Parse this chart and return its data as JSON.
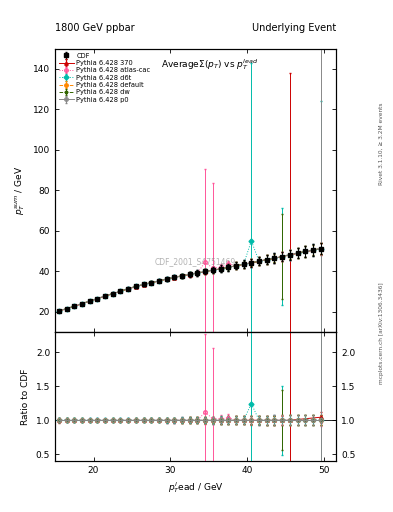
{
  "title_left": "1800 GeV ppbar",
  "title_right": "Underlying Event",
  "plot_title": "AverageΣ(p_T) vs p_T^{lead}",
  "ylabel_main": "p_T^{sum} / GeV",
  "ylabel_ratio": "Ratio to CDF",
  "xlabel": "p_T^{l}ead / GeV",
  "watermark": "CDF_2001_S4751469",
  "right_label_top": "Rivet 3.1.10, ≥ 3.2M events",
  "right_label_bottom": "mcplots.cern.ch [arXiv:1306.3436]",
  "xlim": [
    15.0,
    51.5
  ],
  "ylim_main": [
    10,
    150
  ],
  "ylim_ratio": [
    0.4,
    2.3
  ],
  "yticks_main": [
    20,
    40,
    60,
    80,
    100,
    120,
    140
  ],
  "yticks_ratio": [
    0.5,
    1.0,
    1.5,
    2.0
  ],
  "xticks": [
    20,
    30,
    40,
    50
  ],
  "cdf_x": [
    15.5,
    16.5,
    17.5,
    18.5,
    19.5,
    20.5,
    21.5,
    22.5,
    23.5,
    24.5,
    25.5,
    26.5,
    27.5,
    28.5,
    29.5,
    30.5,
    31.5,
    32.5,
    33.5,
    34.5,
    35.5,
    36.5,
    37.5,
    38.5,
    39.5,
    40.5,
    41.5,
    42.5,
    43.5,
    44.5,
    45.5,
    46.5,
    47.5,
    48.5,
    49.5
  ],
  "cdf_y": [
    20.5,
    21.5,
    22.8,
    24.0,
    25.3,
    26.5,
    27.8,
    29.0,
    30.2,
    31.4,
    32.5,
    33.5,
    34.4,
    35.3,
    36.2,
    37.0,
    37.8,
    38.5,
    39.2,
    39.9,
    40.6,
    41.3,
    42.0,
    42.8,
    43.5,
    44.2,
    45.0,
    45.8,
    46.5,
    47.3,
    48.2,
    49.0,
    49.8,
    50.5,
    51.2
  ],
  "cdf_yerr": [
    0.5,
    0.5,
    0.5,
    0.5,
    0.5,
    0.5,
    0.5,
    0.6,
    0.6,
    0.6,
    0.7,
    0.7,
    0.8,
    0.8,
    0.9,
    1.0,
    1.1,
    1.2,
    1.3,
    1.4,
    1.5,
    1.6,
    1.7,
    1.8,
    1.9,
    2.0,
    2.1,
    2.2,
    2.3,
    2.4,
    2.5,
    2.6,
    2.7,
    2.8,
    2.9
  ],
  "series": [
    {
      "label": "Pythia 6.428 370",
      "color": "#cc0000",
      "linestyle": "-",
      "marker": "^",
      "mfc": "none",
      "x": [
        15.5,
        16.5,
        17.5,
        18.5,
        19.5,
        20.5,
        21.5,
        22.5,
        23.5,
        24.5,
        25.5,
        26.5,
        27.5,
        28.5,
        29.5,
        30.5,
        31.5,
        32.5,
        33.5,
        34.5,
        35.5,
        36.5,
        37.5,
        38.5,
        39.5,
        40.5,
        41.5,
        42.5,
        43.5,
        44.5,
        45.5,
        49.5
      ],
      "y": [
        20.4,
        21.4,
        22.7,
        23.9,
        25.2,
        26.4,
        27.7,
        28.9,
        30.1,
        31.3,
        32.4,
        33.4,
        34.3,
        35.2,
        36.1,
        36.9,
        37.7,
        38.4,
        39.1,
        39.8,
        40.5,
        41.2,
        41.9,
        42.7,
        43.4,
        44.1,
        44.9,
        45.7,
        46.4,
        47.2,
        48.1,
        51.1
      ],
      "yerr": [
        0.4,
        0.4,
        0.4,
        0.4,
        0.4,
        0.4,
        0.4,
        0.5,
        0.5,
        0.5,
        0.6,
        0.6,
        0.7,
        0.7,
        0.8,
        0.9,
        1.0,
        1.1,
        1.2,
        1.3,
        1.4,
        1.5,
        1.6,
        1.7,
        1.8,
        1.9,
        2.0,
        2.1,
        2.2,
        2.3,
        90.0,
        2.9
      ],
      "err_x_large": [
        45.5
      ],
      "err_y_large": [
        48.1
      ],
      "err_large": [
        90.0
      ]
    },
    {
      "label": "Pythia 6.428 atlas-cac",
      "color": "#ff5599",
      "linestyle": ":",
      "marker": "o",
      "mfc": "none",
      "x": [
        15.5,
        16.5,
        17.5,
        18.5,
        19.5,
        20.5,
        21.5,
        22.5,
        23.5,
        24.5,
        25.5,
        26.5,
        27.5,
        28.5,
        29.5,
        30.5,
        31.5,
        32.5,
        33.5,
        34.5,
        35.5,
        36.5,
        37.5,
        38.5,
        39.5,
        40.5,
        41.5,
        42.5,
        43.5,
        44.5,
        45.5,
        46.5,
        47.5,
        48.5,
        49.5
      ],
      "y": [
        20.5,
        21.5,
        22.8,
        24.0,
        25.3,
        26.5,
        27.8,
        29.0,
        30.2,
        31.4,
        32.5,
        33.5,
        34.4,
        35.3,
        36.2,
        37.0,
        37.8,
        38.5,
        39.2,
        44.5,
        41.5,
        42.0,
        43.5,
        42.8,
        43.5,
        44.2,
        45.0,
        45.8,
        46.5,
        47.3,
        48.2,
        49.0,
        49.8,
        50.5,
        51.2
      ],
      "yerr": [
        0.5,
        0.5,
        0.5,
        0.5,
        0.5,
        0.5,
        0.5,
        0.6,
        0.6,
        0.6,
        0.7,
        0.7,
        0.8,
        0.8,
        0.9,
        1.0,
        1.1,
        1.2,
        1.3,
        46.0,
        42.0,
        1.6,
        1.7,
        1.8,
        1.9,
        2.0,
        2.1,
        2.2,
        2.3,
        2.4,
        2.5,
        2.6,
        2.7,
        2.8,
        2.9
      ]
    },
    {
      "label": "Pythia 6.428 d6t",
      "color": "#00bbaa",
      "linestyle": ":",
      "marker": "D",
      "mfc": "#00bbaa",
      "x": [
        15.5,
        16.5,
        17.5,
        18.5,
        19.5,
        20.5,
        21.5,
        22.5,
        23.5,
        24.5,
        25.5,
        26.5,
        27.5,
        28.5,
        29.5,
        30.5,
        31.5,
        32.5,
        33.5,
        34.5,
        35.5,
        36.5,
        37.5,
        38.5,
        39.5,
        40.5,
        41.5,
        42.5,
        43.5,
        44.5,
        45.5,
        46.5,
        47.5,
        48.5,
        49.5
      ],
      "y": [
        20.5,
        21.5,
        22.8,
        24.0,
        25.3,
        26.5,
        27.8,
        29.0,
        30.2,
        31.4,
        32.5,
        33.5,
        34.4,
        35.3,
        36.2,
        37.0,
        37.8,
        38.5,
        39.2,
        39.9,
        40.6,
        41.3,
        42.0,
        42.8,
        43.5,
        55.0,
        45.0,
        45.8,
        46.5,
        47.3,
        48.2,
        49.0,
        49.8,
        50.5,
        51.2
      ],
      "yerr": [
        0.5,
        0.5,
        0.5,
        0.5,
        0.5,
        0.5,
        0.5,
        0.6,
        0.6,
        0.6,
        0.7,
        0.7,
        0.8,
        0.8,
        0.9,
        1.0,
        1.1,
        1.2,
        1.3,
        1.4,
        1.5,
        1.6,
        1.7,
        1.8,
        1.9,
        88.0,
        2.1,
        2.2,
        2.3,
        24.0,
        2.5,
        2.6,
        2.7,
        2.8,
        73.0
      ]
    },
    {
      "label": "Pythia 6.428 default",
      "color": "#ff8800",
      "linestyle": "--",
      "marker": "o",
      "mfc": "#ff8800",
      "x": [
        15.5,
        16.5,
        17.5,
        18.5,
        19.5,
        20.5,
        21.5,
        22.5,
        23.5,
        24.5,
        25.5,
        26.5,
        27.5,
        28.5,
        29.5,
        30.5,
        31.5,
        32.5,
        33.5,
        34.5,
        35.5,
        36.5,
        37.5,
        38.5,
        39.5,
        40.5,
        41.5,
        42.5,
        43.5,
        44.5,
        45.5,
        46.5,
        47.5,
        48.5,
        49.5
      ],
      "y": [
        20.5,
        21.5,
        22.8,
        24.0,
        25.3,
        26.5,
        27.8,
        29.0,
        30.2,
        31.4,
        32.5,
        33.5,
        34.4,
        35.3,
        36.2,
        37.0,
        37.8,
        38.5,
        39.2,
        39.9,
        40.6,
        41.3,
        42.0,
        42.8,
        43.5,
        44.2,
        45.0,
        45.8,
        46.5,
        47.3,
        48.2,
        49.0,
        49.8,
        50.5,
        51.2
      ],
      "yerr": [
        0.3,
        0.3,
        0.3,
        0.3,
        0.3,
        0.3,
        0.3,
        0.4,
        0.4,
        0.4,
        0.5,
        0.5,
        0.6,
        0.6,
        0.7,
        0.8,
        0.9,
        1.0,
        1.1,
        1.2,
        1.3,
        1.4,
        1.5,
        1.6,
        1.7,
        1.8,
        1.9,
        2.0,
        2.1,
        2.2,
        2.3,
        2.4,
        2.5,
        2.6,
        2.7
      ]
    },
    {
      "label": "Pythia 6.428 dw",
      "color": "#336600",
      "linestyle": "--",
      "marker": "*",
      "mfc": "#336600",
      "x": [
        15.5,
        16.5,
        17.5,
        18.5,
        19.5,
        20.5,
        21.5,
        22.5,
        23.5,
        24.5,
        25.5,
        26.5,
        27.5,
        28.5,
        29.5,
        30.5,
        31.5,
        32.5,
        33.5,
        34.5,
        35.5,
        36.5,
        37.5,
        38.5,
        39.5,
        40.5,
        41.5,
        42.5,
        43.5,
        44.5,
        45.5,
        46.5,
        47.5,
        48.5,
        49.5
      ],
      "y": [
        20.5,
        21.5,
        22.8,
        24.0,
        25.3,
        26.5,
        27.8,
        29.0,
        30.2,
        31.4,
        32.5,
        33.5,
        34.4,
        35.3,
        36.2,
        37.0,
        37.8,
        38.5,
        39.2,
        39.9,
        40.6,
        41.3,
        42.0,
        42.8,
        43.5,
        44.2,
        45.0,
        45.8,
        46.5,
        47.3,
        48.2,
        49.0,
        49.8,
        50.5,
        51.2
      ],
      "yerr": [
        0.3,
        0.3,
        0.3,
        0.3,
        0.3,
        0.3,
        0.3,
        0.4,
        0.4,
        0.4,
        0.5,
        0.5,
        0.6,
        0.6,
        0.7,
        0.8,
        0.9,
        1.0,
        1.1,
        1.2,
        1.3,
        1.4,
        1.5,
        1.6,
        1.7,
        1.8,
        1.9,
        2.0,
        2.1,
        21.0,
        2.3,
        2.4,
        2.5,
        2.6,
        2.7
      ]
    },
    {
      "label": "Pythia 6.428 p0",
      "color": "#888888",
      "linestyle": "-",
      "marker": "o",
      "mfc": "none",
      "x": [
        15.5,
        16.5,
        17.5,
        18.5,
        19.5,
        20.5,
        21.5,
        22.5,
        23.5,
        24.5,
        25.5,
        26.5,
        27.5,
        28.5,
        29.5,
        30.5,
        31.5,
        32.5,
        33.5,
        34.5,
        35.5,
        36.5,
        37.5,
        38.5,
        39.5,
        40.5,
        41.5,
        42.5,
        43.5,
        44.5,
        45.5,
        46.5,
        47.5,
        48.5,
        49.5
      ],
      "y": [
        20.5,
        21.5,
        22.8,
        24.0,
        25.3,
        26.5,
        27.8,
        29.0,
        30.2,
        31.4,
        32.5,
        33.5,
        34.4,
        35.3,
        36.2,
        37.0,
        37.8,
        38.5,
        39.2,
        39.9,
        40.6,
        41.3,
        42.0,
        42.8,
        43.5,
        44.2,
        45.0,
        45.8,
        46.5,
        47.3,
        48.2,
        49.0,
        49.8,
        50.5,
        51.2
      ],
      "yerr": [
        0.4,
        0.4,
        0.4,
        0.4,
        0.4,
        0.4,
        0.4,
        0.5,
        0.5,
        0.5,
        0.6,
        0.6,
        0.7,
        0.7,
        0.8,
        0.9,
        1.0,
        1.1,
        1.2,
        1.3,
        1.4,
        1.5,
        1.6,
        1.7,
        1.8,
        1.9,
        2.0,
        2.1,
        2.2,
        2.3,
        2.4,
        2.5,
        2.6,
        2.7,
        108.0
      ]
    }
  ]
}
